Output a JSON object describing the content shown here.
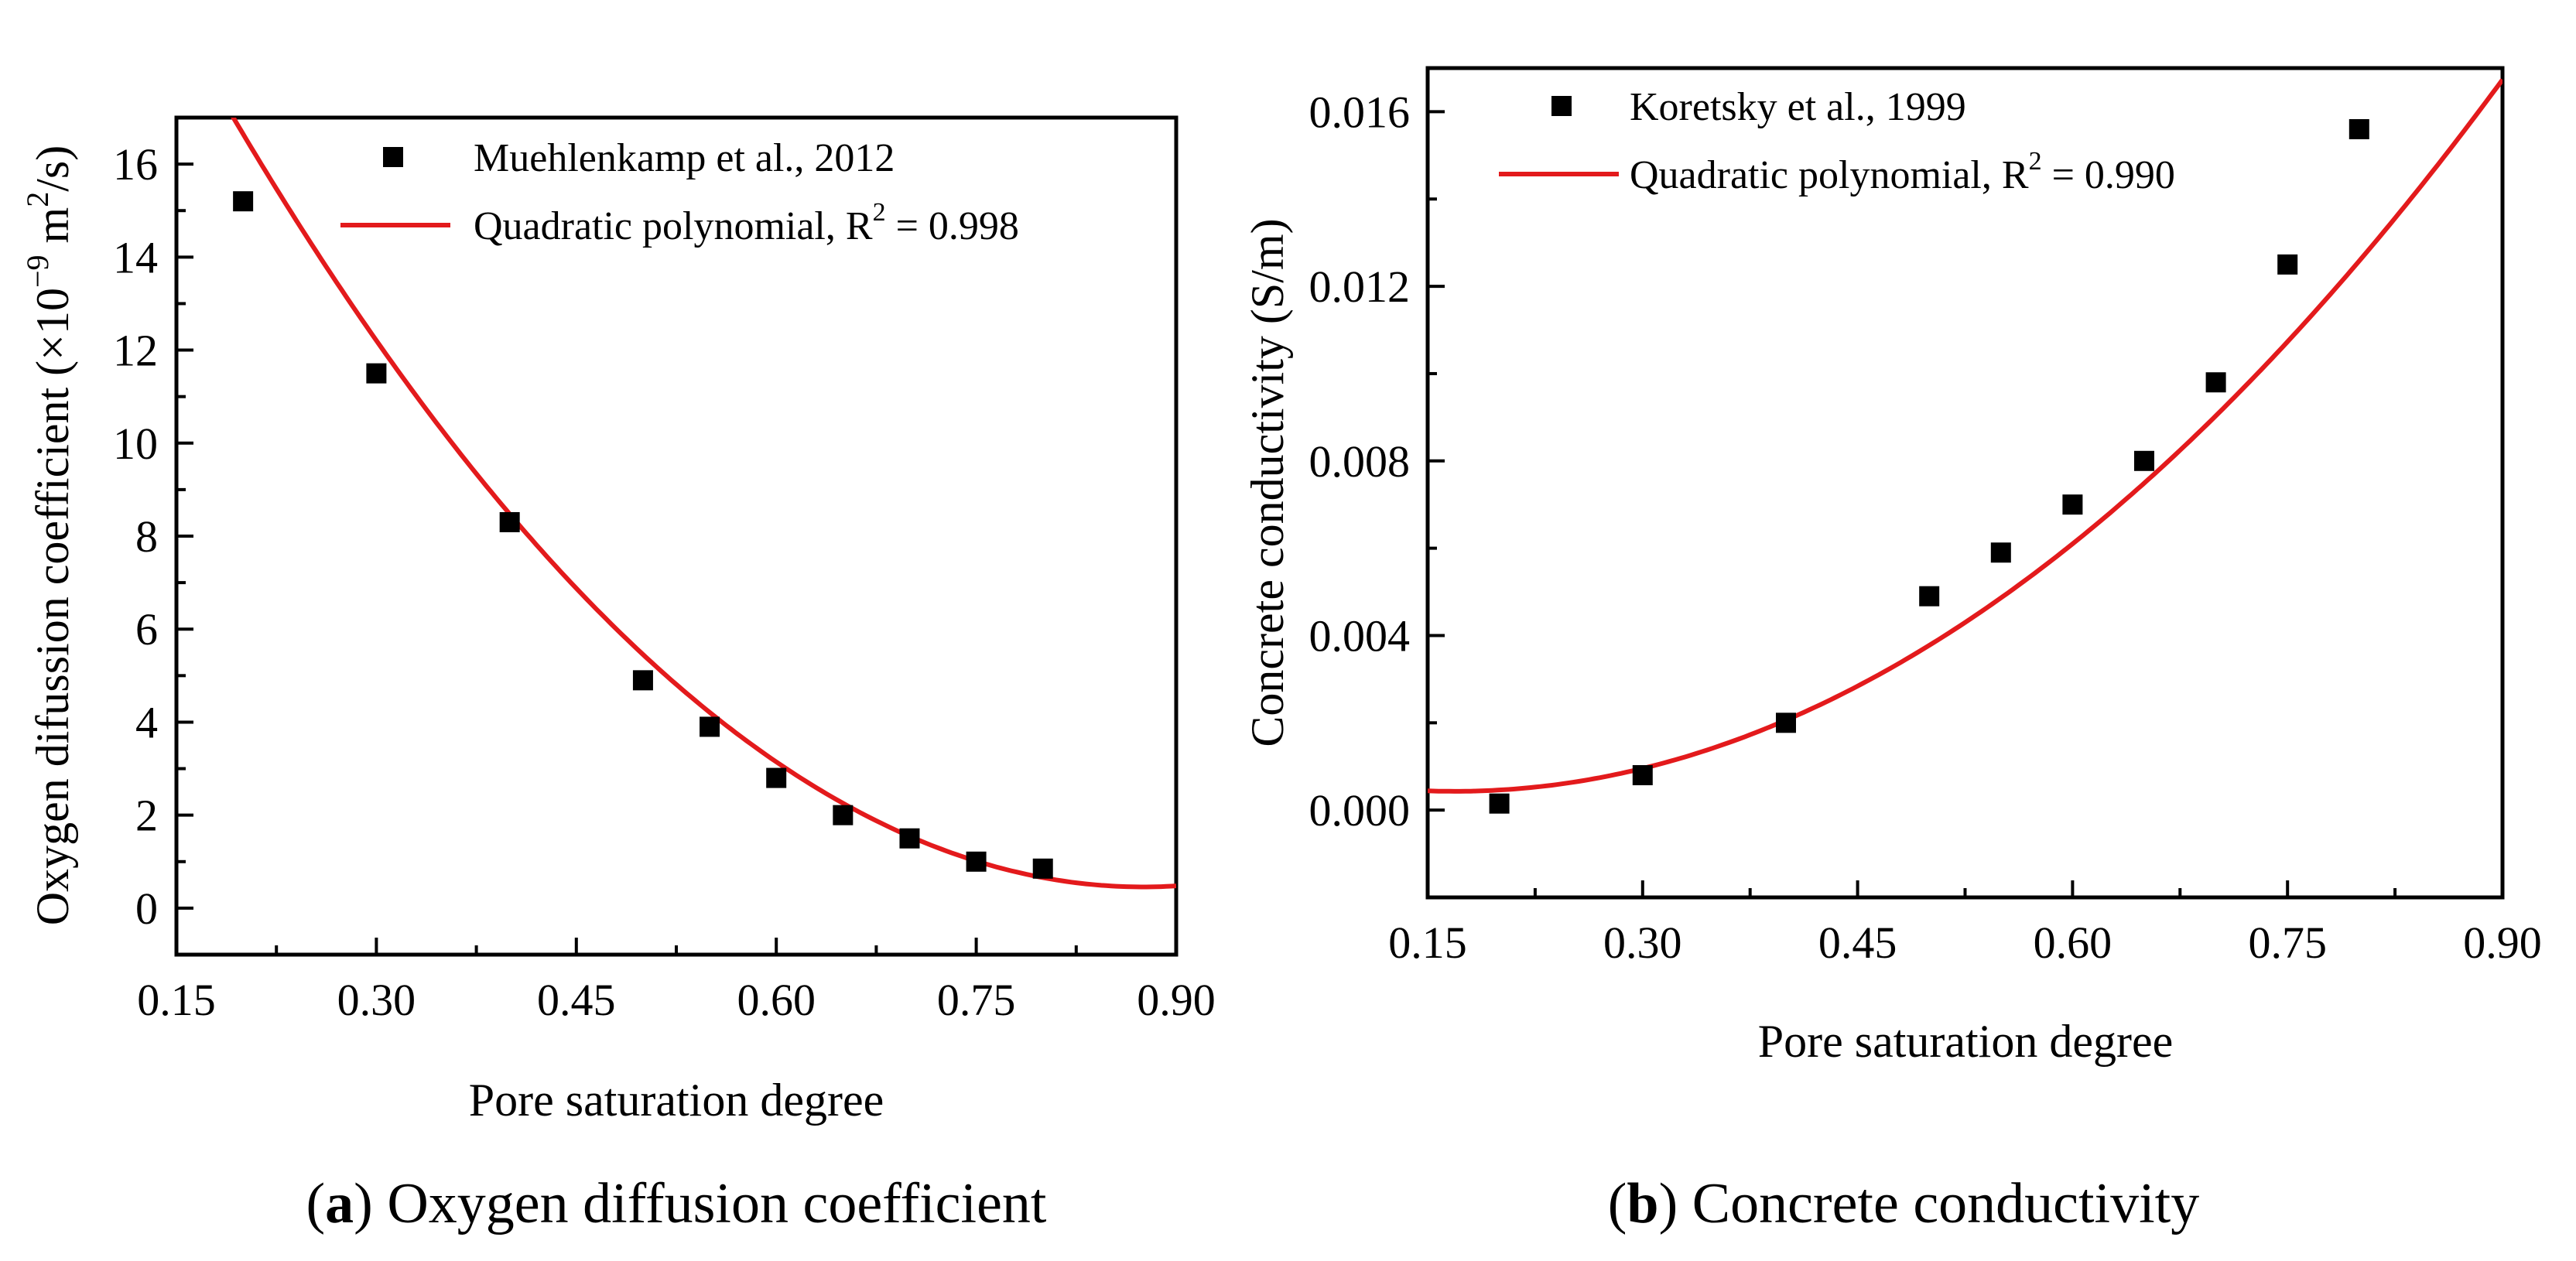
{
  "chart_data": [
    {
      "type": "scatter",
      "panel_letter": "a",
      "caption": "Oxygen diffusion coefficient",
      "xlabel": "Pore saturation degree",
      "ylabel_main": "Oxygen difussion coefficient (×10",
      "ylabel_exp": "−9",
      "ylabel_unit": " m",
      "ylabel_unit_exp": "2",
      "ylabel_end": "/s)",
      "xlim": [
        0.15,
        0.9
      ],
      "ylim": [
        -1,
        17
      ],
      "xticks": [
        0.15,
        0.3,
        0.45,
        0.6,
        0.75,
        0.9
      ],
      "xtick_labels": [
        "0.15",
        "0.30",
        "0.45",
        "0.60",
        "0.75",
        "0.90"
      ],
      "yticks": [
        0,
        2,
        4,
        6,
        8,
        10,
        12,
        14,
        16
      ],
      "ytick_labels": [
        "0",
        "2",
        "4",
        "6",
        "8",
        "10",
        "12",
        "14",
        "16"
      ],
      "series": [
        {
          "name": "Muehlenkamp et al., 2012",
          "kind": "points",
          "x": [
            0.2,
            0.3,
            0.4,
            0.5,
            0.55,
            0.6,
            0.65,
            0.7,
            0.75,
            0.8
          ],
          "y": [
            15.2,
            11.5,
            8.3,
            4.9,
            3.9,
            2.8,
            2.0,
            1.5,
            1.0,
            0.85
          ]
        },
        {
          "name": "Quadratic polynomial, R",
          "name_sup": "2",
          "name_end": " = 0.998",
          "kind": "fit",
          "coeffs": [
            27.66,
            -62.17,
            35.52
          ],
          "x_range": [
            0.15,
            0.9
          ]
        }
      ],
      "colors": {
        "points": "#000000",
        "fit": "#e31a1c"
      }
    },
    {
      "type": "scatter",
      "panel_letter": "b",
      "caption": "Concrete conductivity",
      "xlabel": "Pore saturation degree",
      "ylabel_main": "Concrete conductivity (S/m)",
      "xlim": [
        0.15,
        0.9
      ],
      "ylim": [
        -0.002,
        0.017
      ],
      "xticks": [
        0.15,
        0.3,
        0.45,
        0.6,
        0.75,
        0.9
      ],
      "xtick_labels": [
        "0.15",
        "0.30",
        "0.45",
        "0.60",
        "0.75",
        "0.90"
      ],
      "yticks": [
        0.0,
        0.004,
        0.008,
        0.012,
        0.016
      ],
      "ytick_labels": [
        "0.000",
        "0.004",
        "0.008",
        "0.012",
        "0.016"
      ],
      "series": [
        {
          "name": "Koretsky et al., 1999",
          "kind": "points",
          "x": [
            0.2,
            0.3,
            0.4,
            0.5,
            0.55,
            0.6,
            0.65,
            0.7,
            0.75,
            0.8
          ],
          "y": [
            0.00015,
            0.0008,
            0.002,
            0.0049,
            0.0059,
            0.007,
            0.008,
            0.0098,
            0.0125,
            0.0156
          ]
        },
        {
          "name": "Quadratic polynomial, R",
          "name_sup": "2",
          "name_end": " = 0.990",
          "kind": "fit",
          "coeffs": [
            0.0013,
            -0.0103,
            0.0305
          ],
          "x_range": [
            0.15,
            0.9
          ]
        }
      ],
      "colors": {
        "points": "#000000",
        "fit": "#e31a1c"
      }
    }
  ]
}
